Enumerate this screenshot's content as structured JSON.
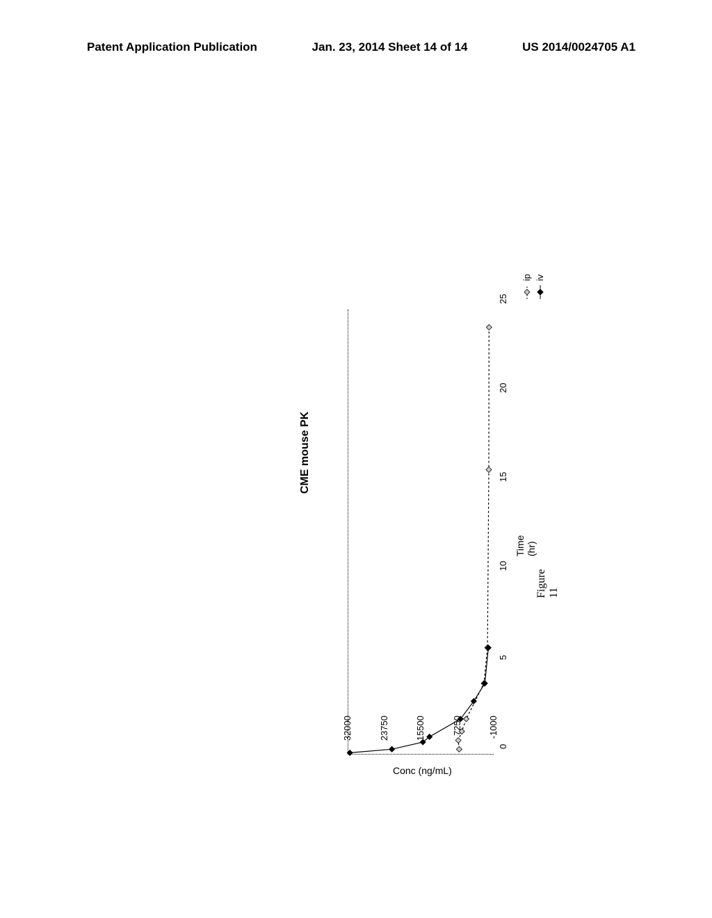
{
  "header": {
    "left": "Patent Application Publication",
    "center": "Jan. 23, 2014  Sheet 14 of 14",
    "right": "US 2014/0024705 A1"
  },
  "chart": {
    "type": "line",
    "title": "CME mouse PK",
    "xlabel": "Time (hr)",
    "ylabel": "Conc (ng/mL)",
    "xlim": [
      0,
      25
    ],
    "ylim": [
      -1000,
      32000
    ],
    "xticks": [
      0,
      5,
      10,
      15,
      20,
      25
    ],
    "yticks": [
      -1000,
      7250,
      15500,
      23750,
      32000
    ],
    "background_color": "#ffffff",
    "axis_color": "#000000",
    "series": [
      {
        "name": "ip",
        "label": "ip",
        "marker": "diamond",
        "marker_fill": "#cccccc",
        "marker_stroke": "#000000",
        "line_color": "#000000",
        "line_style": "dashed",
        "x": [
          0.3,
          0.8,
          1.3,
          2.0,
          4.0,
          6.0,
          16.0,
          24.0
        ],
        "y": [
          6800,
          7000,
          6200,
          5200,
          1200,
          400,
          100,
          50
        ]
      },
      {
        "name": "iv",
        "label": "iv",
        "marker": "diamond",
        "marker_fill": "#000000",
        "marker_stroke": "#000000",
        "line_color": "#000000",
        "line_style": "solid",
        "x": [
          0.1,
          0.3,
          0.7,
          1.0,
          2.0,
          3.0,
          4.0,
          6.0
        ],
        "y": [
          31500,
          22000,
          15000,
          13500,
          6500,
          3500,
          1000,
          200
        ]
      }
    ]
  },
  "figure_caption": "Figure 11",
  "legend_items": [
    "ip",
    "iv"
  ]
}
